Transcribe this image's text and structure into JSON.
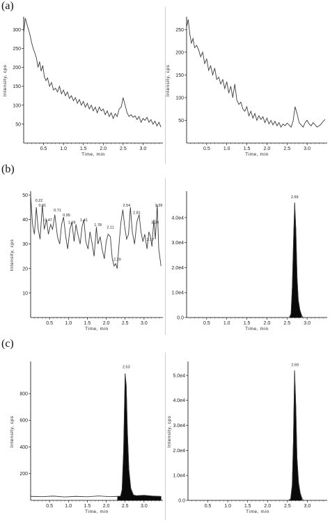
{
  "panel_labels": {
    "a": "(a)",
    "b": "(b)",
    "c": "(c)"
  },
  "colors": {
    "line": "#3a3a3a",
    "fill": "#0a0a0a",
    "axis": "#000000"
  },
  "chart_data": [
    {
      "panel": "a",
      "position": "left",
      "type": "line",
      "xlabel": "Time, min",
      "ylabel": "Intensity, cps",
      "xlim": [
        0,
        3.5
      ],
      "ylim": [
        0,
        330
      ],
      "xticks": [
        "0.5",
        "1.0",
        "1.5",
        "2.0",
        "2.5",
        "3.0"
      ],
      "yticks": [
        "50",
        "100",
        "150",
        "200",
        "250",
        "300"
      ],
      "x": [
        0.0,
        0.04,
        0.08,
        0.12,
        0.16,
        0.2,
        0.24,
        0.28,
        0.32,
        0.36,
        0.4,
        0.44,
        0.48,
        0.52,
        0.56,
        0.6,
        0.65,
        0.7,
        0.75,
        0.8,
        0.85,
        0.9,
        0.95,
        1.0,
        1.05,
        1.1,
        1.15,
        1.2,
        1.25,
        1.3,
        1.35,
        1.4,
        1.45,
        1.5,
        1.55,
        1.6,
        1.65,
        1.7,
        1.75,
        1.8,
        1.85,
        1.9,
        1.95,
        2.0,
        2.05,
        2.1,
        2.15,
        2.2,
        2.25,
        2.3,
        2.35,
        2.4,
        2.45,
        2.5,
        2.55,
        2.6,
        2.65,
        2.7,
        2.75,
        2.8,
        2.85,
        2.9,
        2.95,
        3.0,
        3.05,
        3.1,
        3.15,
        3.2,
        3.25,
        3.3,
        3.35,
        3.4,
        3.45
      ],
      "y": [
        290,
        330,
        315,
        300,
        285,
        265,
        250,
        238,
        225,
        200,
        215,
        190,
        205,
        175,
        165,
        172,
        150,
        160,
        140,
        145,
        135,
        150,
        130,
        140,
        125,
        135,
        118,
        125,
        112,
        120,
        105,
        115,
        100,
        110,
        95,
        105,
        90,
        100,
        85,
        95,
        80,
        95,
        85,
        90,
        75,
        85,
        70,
        80,
        65,
        78,
        70,
        90,
        95,
        120,
        100,
        80,
        70,
        75,
        68,
        72,
        62,
        70,
        55,
        65,
        60,
        68,
        55,
        62,
        50,
        58,
        45,
        55,
        42
      ],
      "peak_labels": []
    },
    {
      "panel": "a",
      "position": "right",
      "type": "line",
      "xlabel": "Time, min",
      "ylabel": "Intensity, cps",
      "xlim": [
        0,
        3.5
      ],
      "ylim": [
        0,
        275
      ],
      "xticks": [
        "0.5",
        "1.0",
        "1.5",
        "2.0",
        "2.5",
        "3.0"
      ],
      "yticks": [
        "50",
        "100",
        "150",
        "200",
        "250"
      ],
      "x": [
        0.0,
        0.04,
        0.08,
        0.12,
        0.16,
        0.2,
        0.25,
        0.3,
        0.35,
        0.4,
        0.45,
        0.5,
        0.55,
        0.6,
        0.65,
        0.7,
        0.75,
        0.8,
        0.85,
        0.9,
        0.95,
        1.0,
        1.05,
        1.1,
        1.15,
        1.2,
        1.25,
        1.3,
        1.35,
        1.4,
        1.45,
        1.5,
        1.55,
        1.6,
        1.65,
        1.7,
        1.75,
        1.8,
        1.85,
        1.9,
        1.95,
        2.0,
        2.05,
        2.1,
        2.15,
        2.2,
        2.25,
        2.3,
        2.35,
        2.4,
        2.45,
        2.5,
        2.55,
        2.6,
        2.65,
        2.7,
        2.75,
        2.8,
        2.85,
        2.9,
        2.95,
        3.0,
        3.05,
        3.1,
        3.15,
        3.2,
        3.25,
        3.3,
        3.35,
        3.4,
        3.45
      ],
      "y": [
        255,
        272,
        240,
        220,
        230,
        210,
        215,
        205,
        190,
        200,
        175,
        185,
        160,
        170,
        150,
        165,
        140,
        145,
        130,
        140,
        120,
        135,
        110,
        125,
        100,
        130,
        95,
        85,
        90,
        75,
        70,
        80,
        60,
        70,
        55,
        65,
        50,
        60,
        52,
        58,
        45,
        55,
        42,
        50,
        40,
        48,
        38,
        45,
        35,
        42,
        38,
        44,
        40,
        35,
        48,
        80,
        65,
        45,
        40,
        35,
        45,
        50,
        42,
        38,
        45,
        40,
        35,
        38,
        42,
        48,
        52
      ],
      "peak_labels": []
    },
    {
      "panel": "b",
      "position": "left",
      "type": "line",
      "xlabel": "Time, min",
      "ylabel": "Intensity, cps",
      "xlim": [
        0,
        3.5
      ],
      "ylim": [
        0,
        51
      ],
      "xticks": [
        "0.5",
        "1.0",
        "1.5",
        "2.0",
        "2.5",
        "3.0"
      ],
      "yticks": [
        "10",
        "20",
        "30",
        "40",
        "50"
      ],
      "x": [
        0.0,
        0.05,
        0.1,
        0.15,
        0.2,
        0.25,
        0.31,
        0.36,
        0.42,
        0.47,
        0.53,
        0.58,
        0.64,
        0.71,
        0.77,
        0.82,
        0.87,
        0.93,
        0.98,
        1.04,
        1.09,
        1.15,
        1.2,
        1.25,
        1.31,
        1.36,
        1.41,
        1.46,
        1.52,
        1.57,
        1.63,
        1.68,
        1.74,
        1.78,
        1.84,
        1.89,
        1.95,
        2.0,
        2.05,
        2.11,
        2.16,
        2.21,
        2.25,
        2.29,
        2.34,
        2.39,
        2.44,
        2.49,
        2.54,
        2.59,
        2.64,
        2.69,
        2.75,
        2.81,
        2.87,
        2.92,
        2.97,
        3.02,
        3.08,
        3.13,
        3.17,
        3.21,
        3.26,
        3.3,
        3.35,
        3.39,
        3.45
      ],
      "y": [
        50,
        38,
        34,
        45,
        36,
        32,
        46,
        36,
        40,
        34,
        38,
        36,
        42,
        33,
        30,
        38,
        41,
        33,
        28,
        36,
        39,
        31,
        38,
        34,
        30,
        37,
        40,
        31,
        28,
        35,
        30,
        25,
        37,
        30,
        33,
        28,
        24,
        31,
        34,
        33,
        24,
        21,
        22,
        20,
        30,
        39,
        44,
        37,
        32,
        34,
        45,
        35,
        30,
        39,
        42,
        35,
        31,
        34,
        28,
        35,
        33,
        29,
        40,
        32,
        46,
        28,
        21
      ],
      "peak_labels": [
        {
          "text": "0.22",
          "x": 0.22,
          "y": 47
        },
        {
          "text": "0.31",
          "x": 0.31,
          "y": 45
        },
        {
          "text": "0.47",
          "x": 0.47,
          "y": 39
        },
        {
          "text": "0.71",
          "x": 0.71,
          "y": 43
        },
        {
          "text": "0.95",
          "x": 0.95,
          "y": 41
        },
        {
          "text": "1.09",
          "x": 1.09,
          "y": 38
        },
        {
          "text": "1.41",
          "x": 1.41,
          "y": 39
        },
        {
          "text": "1.78",
          "x": 1.78,
          "y": 37
        },
        {
          "text": "2.11",
          "x": 2.11,
          "y": 36
        },
        {
          "text": "2.29",
          "x": 2.29,
          "y": 23
        },
        {
          "text": "2.54",
          "x": 2.54,
          "y": 45
        },
        {
          "text": "2.81",
          "x": 2.81,
          "y": 42
        },
        {
          "text": "3.17",
          "x": 3.17,
          "y": 31
        },
        {
          "text": "3.29",
          "x": 3.29,
          "y": 38
        },
        {
          "text": "3.39",
          "x": 3.39,
          "y": 45
        }
      ]
    },
    {
      "panel": "b",
      "position": "right",
      "type": "area",
      "xlabel": "Time, min",
      "ylabel": "",
      "xlim": [
        0,
        3.5
      ],
      "ylim": [
        0,
        50000
      ],
      "xticks": [
        "0.5",
        "1.0",
        "1.5",
        "2.0",
        "2.5",
        "3.0"
      ],
      "yticks": [
        "0.0",
        "1.0e4",
        "2.0e4",
        "3.0e4",
        "4.0e4"
      ],
      "x": [
        0.0,
        2.5,
        2.56,
        2.6,
        2.63,
        2.66,
        2.69,
        2.72,
        2.75,
        2.78,
        2.82,
        2.86,
        2.9,
        3.5
      ],
      "y": [
        0,
        0,
        0,
        1500,
        12000,
        30000,
        46000,
        35000,
        16000,
        7000,
        3000,
        1000,
        0,
        0
      ],
      "peak_labels": [
        {
          "text": "2.69",
          "x": 2.69,
          "y": 47500
        }
      ]
    },
    {
      "panel": "c",
      "position": "left",
      "type": "area",
      "xlabel": "Time, min",
      "ylabel": "Intensity, cps",
      "xlim": [
        0,
        3.5
      ],
      "ylim": [
        0,
        1030
      ],
      "xticks": [
        "0.5",
        "1.0",
        "1.5",
        "2.0",
        "2.5",
        "3.0"
      ],
      "yticks": [
        "200",
        "400",
        "600",
        "800"
      ],
      "x": [
        0.0,
        0.3,
        0.6,
        0.9,
        1.2,
        1.5,
        1.8,
        2.1,
        2.3,
        2.38,
        2.42,
        2.46,
        2.5,
        2.53,
        2.56,
        2.6,
        2.65,
        2.72,
        2.8,
        3.0,
        3.2,
        3.45
      ],
      "y": [
        30,
        28,
        32,
        26,
        30,
        27,
        33,
        28,
        30,
        32,
        80,
        380,
        950,
        860,
        520,
        230,
        90,
        40,
        35,
        38,
        33,
        30
      ],
      "peak_labels": [
        {
          "text": "2.53",
          "x": 2.53,
          "y": 985
        }
      ]
    },
    {
      "panel": "c",
      "position": "right",
      "type": "area",
      "xlabel": "Time, min",
      "ylabel": "Intensity, cps",
      "xlim": [
        0,
        3.5
      ],
      "ylim": [
        0,
        55000
      ],
      "xticks": [
        "0.5",
        "1.0",
        "1.5",
        "2.0",
        "2.5",
        "3.0"
      ],
      "yticks": [
        "0.0",
        "1.0e4",
        "2.0e4",
        "3.0e4",
        "4.0e4",
        "5.0e4"
      ],
      "x": [
        0.0,
        2.52,
        2.58,
        2.62,
        2.65,
        2.68,
        2.71,
        2.74,
        2.78,
        2.82,
        2.86,
        2.9,
        3.5
      ],
      "y": [
        0,
        0,
        500,
        6000,
        24000,
        52000,
        38000,
        17000,
        7000,
        3000,
        1000,
        0,
        0
      ],
      "peak_labels": [
        {
          "text": "2.69",
          "x": 2.69,
          "y": 53500
        }
      ]
    }
  ]
}
